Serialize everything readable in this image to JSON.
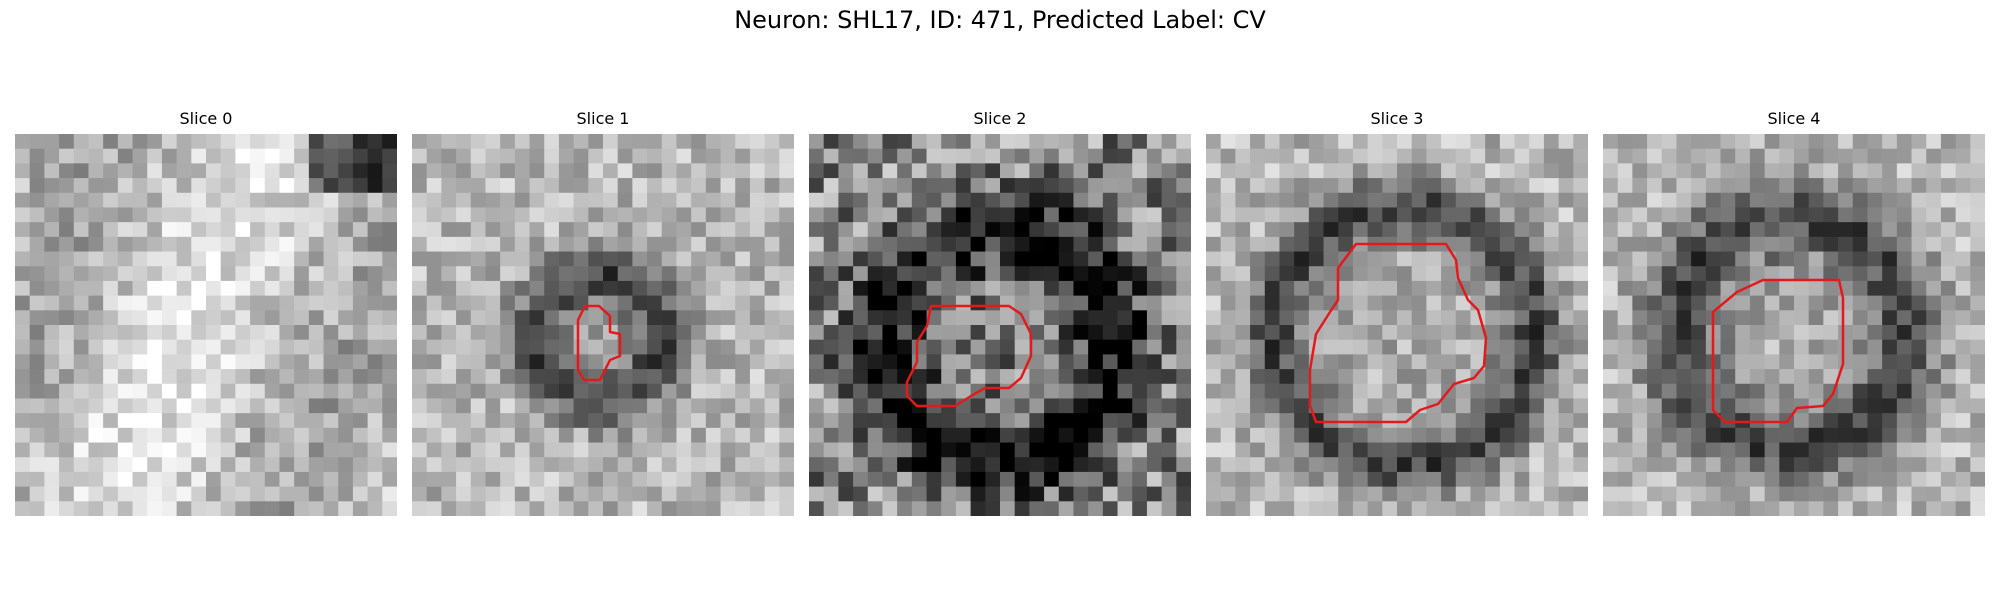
{
  "figure": {
    "title": "Neuron: SHL17, ID: 471, Predicted Label: CV"
  },
  "panels": [
    {
      "title": "Slice 0",
      "has_contour": false,
      "seed": 11,
      "pattern": "flat"
    },
    {
      "title": "Slice 1",
      "has_contour": true,
      "seed": 23,
      "pattern": "ring_small"
    },
    {
      "title": "Slice 2",
      "has_contour": true,
      "seed": 37,
      "pattern": "noisy"
    },
    {
      "title": "Slice 3",
      "has_contour": true,
      "seed": 41,
      "pattern": "ring_large"
    },
    {
      "title": "Slice 4",
      "has_contour": true,
      "seed": 53,
      "pattern": "ring_medium"
    }
  ],
  "colors": {
    "contour": "#e31a1c",
    "background": "#ffffff"
  }
}
